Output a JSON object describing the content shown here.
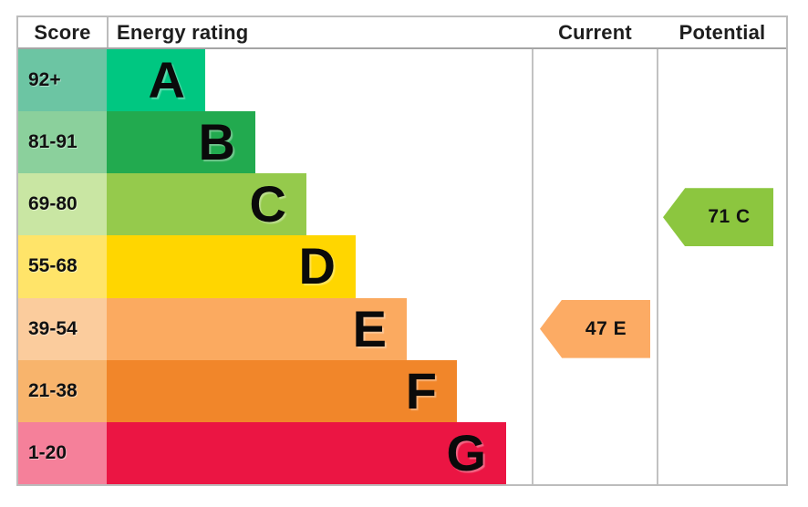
{
  "header": {
    "score": "Score",
    "energy_rating": "Energy rating",
    "current": "Current",
    "potential": "Potential"
  },
  "bands": [
    {
      "range": "92+",
      "letter": "A",
      "bar_color": "#00c781",
      "range_color": "#6cc5a3"
    },
    {
      "range": "81-91",
      "letter": "B",
      "bar_color": "#22aa4f",
      "range_color": "#8bd09c"
    },
    {
      "range": "69-80",
      "letter": "C",
      "bar_color": "#95ca4c",
      "range_color": "#c9e6a3"
    },
    {
      "range": "55-68",
      "letter": "D",
      "bar_color": "#ffd600",
      "range_color": "#ffe469"
    },
    {
      "range": "39-54",
      "letter": "E",
      "bar_color": "#fbaa60",
      "range_color": "#fbcc9d"
    },
    {
      "range": "21-38",
      "letter": "F",
      "bar_color": "#f1862a",
      "range_color": "#f8b46c"
    },
    {
      "range": "1-20",
      "letter": "G",
      "bar_color": "#eb1543",
      "range_color": "#f5809a"
    }
  ],
  "markers": {
    "current": {
      "label": "47 E",
      "color": "#fcab64"
    },
    "potential": {
      "label": "71 C",
      "color": "#8cc63f"
    }
  },
  "chart_data": {
    "type": "bar",
    "title": "Energy rating",
    "orientation": "horizontal",
    "categories": [
      "A",
      "B",
      "C",
      "D",
      "E",
      "F",
      "G"
    ],
    "score_ranges": [
      "92+",
      "81-91",
      "69-80",
      "55-68",
      "39-54",
      "21-38",
      "1-20"
    ],
    "bar_colors": [
      "#00c781",
      "#22aa4f",
      "#95ca4c",
      "#ffd600",
      "#fbaa60",
      "#f1862a",
      "#eb1543"
    ],
    "bar_lengths_relative": [
      0.23,
      0.35,
      0.47,
      0.59,
      0.71,
      0.82,
      0.94
    ],
    "columns": [
      "Score",
      "Energy rating",
      "Current",
      "Potential"
    ],
    "markers": [
      {
        "series": "Current",
        "score": 47,
        "rating": "E",
        "label": "47 E",
        "color": "#fcab64"
      },
      {
        "series": "Potential",
        "score": 71,
        "rating": "C",
        "label": "71 C",
        "color": "#8cc63f"
      }
    ],
    "grid": false,
    "legend_position": "none"
  }
}
